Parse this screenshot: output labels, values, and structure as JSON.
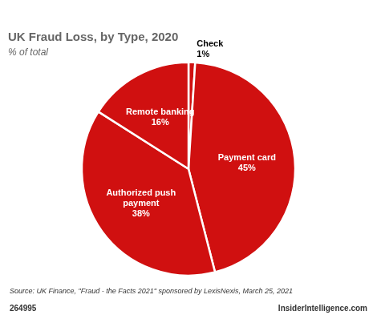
{
  "chart_data": {
    "type": "pie",
    "title": "UK Fraud Loss, by Type, 2020",
    "subtitle": "% of total",
    "categories": [
      "Check",
      "Payment card",
      "Authorized push\npayment",
      "Remote banking"
    ],
    "values": [
      1,
      45,
      38,
      16
    ],
    "value_labels": [
      "1%",
      "45%",
      "38%",
      "16%"
    ],
    "color": "#d01010",
    "data_labels": true,
    "legend": false,
    "annotations": [
      "Source: UK Finance, \"Fraud - the Facts 2021\" sponsored by LexisNexis, March 25, 2021",
      "264995",
      "InsiderIntelligence.com"
    ]
  }
}
